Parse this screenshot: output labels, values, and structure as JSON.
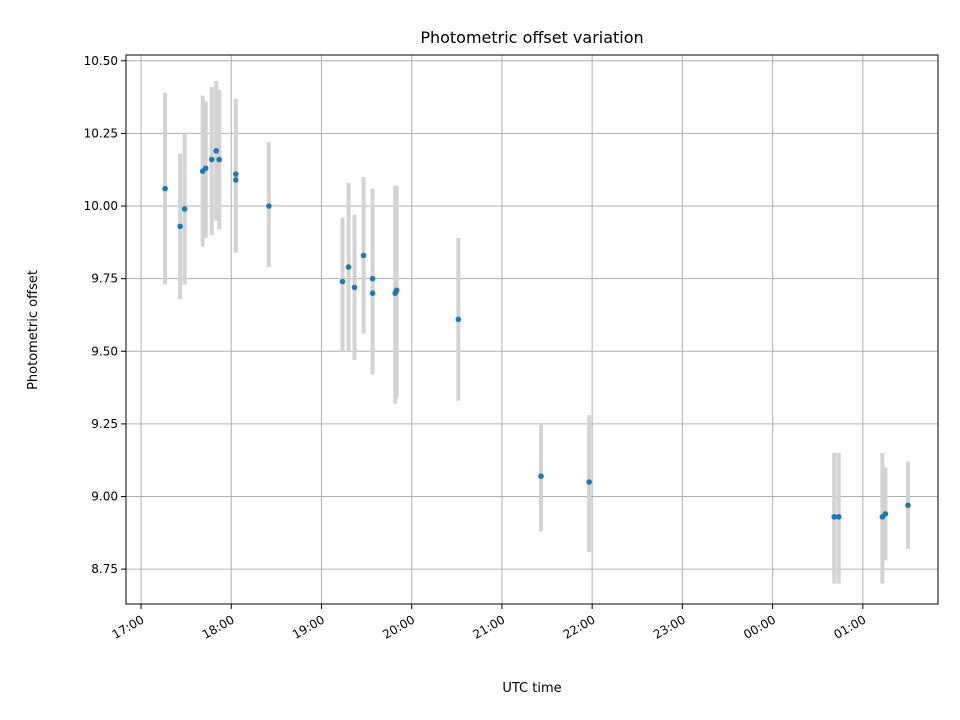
{
  "chart_data": {
    "type": "scatter",
    "title": "Photometric offset variation",
    "xlabel": "UTC time",
    "ylabel": "Photometric offset",
    "x_tick_labels": [
      "17:00",
      "18:00",
      "19:00",
      "20:00",
      "21:00",
      "22:00",
      "23:00",
      "00:00",
      "01:00"
    ],
    "y_tick_labels": [
      "8.75",
      "9.00",
      "9.25",
      "9.50",
      "9.75",
      "10.00",
      "10.25",
      "10.50"
    ],
    "y_ticks": [
      8.75,
      9.0,
      9.25,
      9.5,
      9.75,
      10.0,
      10.25,
      10.5
    ],
    "x_range": [
      "16:50",
      "01:50"
    ],
    "ylim": [
      8.63,
      10.52
    ],
    "grid": true,
    "colors": {
      "points": "#1f77b4",
      "error_bars": "#d3d3d3"
    },
    "points": [
      {
        "x": "17:16",
        "y": 10.06,
        "ylo": 9.73,
        "yhi": 10.39
      },
      {
        "x": "17:26",
        "y": 9.93,
        "ylo": 9.68,
        "yhi": 10.18
      },
      {
        "x": "17:29",
        "y": 9.99,
        "ylo": 9.73,
        "yhi": 10.25
      },
      {
        "x": "17:41",
        "y": 10.12,
        "ylo": 9.86,
        "yhi": 10.38
      },
      {
        "x": "17:43",
        "y": 10.13,
        "ylo": 9.89,
        "yhi": 10.36
      },
      {
        "x": "17:47",
        "y": 10.16,
        "ylo": 9.9,
        "yhi": 10.41
      },
      {
        "x": "17:50",
        "y": 10.19,
        "ylo": 9.95,
        "yhi": 10.43
      },
      {
        "x": "17:52",
        "y": 10.16,
        "ylo": 9.92,
        "yhi": 10.4
      },
      {
        "x": "18:03",
        "y": 10.11,
        "ylo": 9.84,
        "yhi": 10.37
      },
      {
        "x": "18:03",
        "y": 10.09,
        "ylo": 9.85,
        "yhi": 10.34
      },
      {
        "x": "18:25",
        "y": 10.0,
        "ylo": 9.79,
        "yhi": 10.22
      },
      {
        "x": "19:14",
        "y": 9.74,
        "ylo": 9.5,
        "yhi": 9.96
      },
      {
        "x": "19:18",
        "y": 9.79,
        "ylo": 9.5,
        "yhi": 10.08
      },
      {
        "x": "19:22",
        "y": 9.72,
        "ylo": 9.47,
        "yhi": 9.97
      },
      {
        "x": "19:28",
        "y": 9.83,
        "ylo": 9.56,
        "yhi": 10.1
      },
      {
        "x": "19:34",
        "y": 9.75,
        "ylo": 9.49,
        "yhi": 10.06
      },
      {
        "x": "19:34",
        "y": 9.7,
        "ylo": 9.42,
        "yhi": 9.98
      },
      {
        "x": "19:49",
        "y": 9.7,
        "ylo": 9.32,
        "yhi": 10.07
      },
      {
        "x": "19:50",
        "y": 9.71,
        "ylo": 9.34,
        "yhi": 10.07
      },
      {
        "x": "20:31",
        "y": 9.61,
        "ylo": 9.33,
        "yhi": 9.89
      },
      {
        "x": "21:26",
        "y": 9.07,
        "ylo": 8.88,
        "yhi": 9.25
      },
      {
        "x": "21:58",
        "y": 9.05,
        "ylo": 8.81,
        "yhi": 9.28
      },
      {
        "x": "00:41",
        "y": 8.93,
        "ylo": 8.7,
        "yhi": 9.15
      },
      {
        "x": "00:44",
        "y": 8.93,
        "ylo": 8.7,
        "yhi": 9.15
      },
      {
        "x": "01:13",
        "y": 8.93,
        "ylo": 8.7,
        "yhi": 9.15
      },
      {
        "x": "01:15",
        "y": 8.94,
        "ylo": 8.78,
        "yhi": 9.1
      },
      {
        "x": "01:30",
        "y": 8.97,
        "ylo": 8.82,
        "yhi": 9.12
      }
    ]
  }
}
